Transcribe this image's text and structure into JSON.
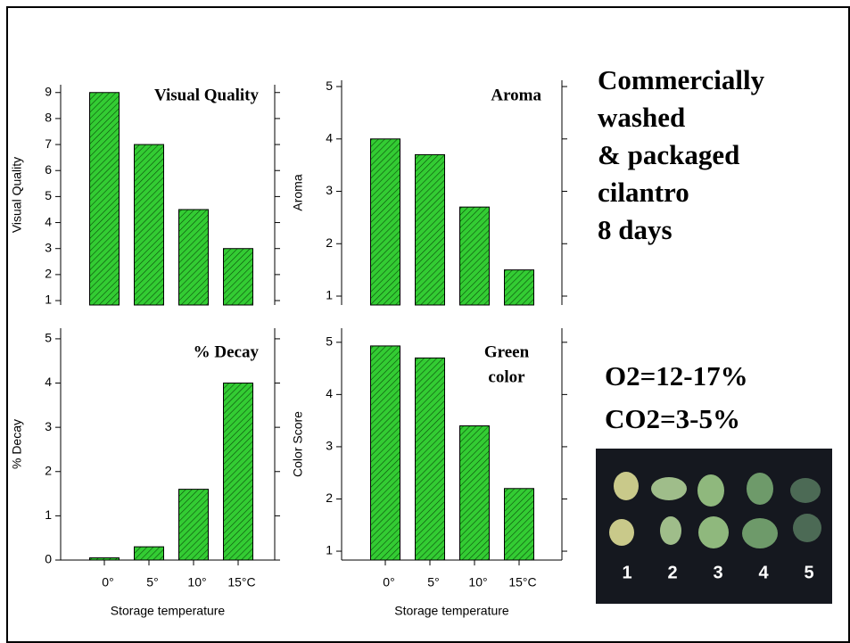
{
  "chart_data": [
    {
      "type": "bar",
      "title": "Visual Quality",
      "ylabel": "Visual Quality",
      "categories": [
        null,
        null,
        null,
        null
      ],
      "values": [
        9,
        7,
        4.5,
        3
      ],
      "color": "#33cc33",
      "ylim": [
        0.83,
        9.3
      ],
      "yticks": [
        1,
        2,
        3,
        4,
        5,
        6,
        7,
        8,
        9
      ]
    },
    {
      "type": "bar",
      "title": "Aroma",
      "ylabel": "Aroma",
      "categories": [
        null,
        null,
        null,
        null
      ],
      "values": [
        4,
        3.7,
        2.7,
        1.5
      ],
      "color": "#33cc33",
      "ylim": [
        0.83,
        5.12
      ],
      "yticks": [
        1,
        2,
        3,
        4,
        5
      ]
    },
    {
      "type": "bar",
      "title": "% Decay",
      "ylabel": "% Decay",
      "xlabel": "Storage temperature",
      "categories": [
        "0°",
        "5°",
        "10°",
        "15°C"
      ],
      "values": [
        0.05,
        0.3,
        1.6,
        4
      ],
      "color": "#33cc33",
      "ylim": [
        0,
        5.24
      ],
      "yticks": [
        0,
        1,
        2,
        3,
        4,
        5
      ]
    },
    {
      "type": "bar",
      "title_lines": [
        "Green",
        "color"
      ],
      "ylabel": "Color Score",
      "xlabel": "Storage temperature",
      "categories": [
        "0°",
        "5°",
        "10°",
        "15°C"
      ],
      "values": [
        4.93,
        4.7,
        3.4,
        2.2
      ],
      "color": "#33cc33",
      "ylim": [
        0.83,
        5.27
      ],
      "yticks": [
        1,
        2,
        3,
        4,
        5
      ]
    }
  ],
  "slide": {
    "heading_lines": [
      "Commercially",
      "washed",
      "& packaged",
      "cilantro",
      "8 days"
    ],
    "gas_lines": [
      "O2=12-17%",
      "CO2=3-5%"
    ],
    "photo_labels": [
      "1",
      "2",
      "3",
      "4",
      "5"
    ]
  }
}
